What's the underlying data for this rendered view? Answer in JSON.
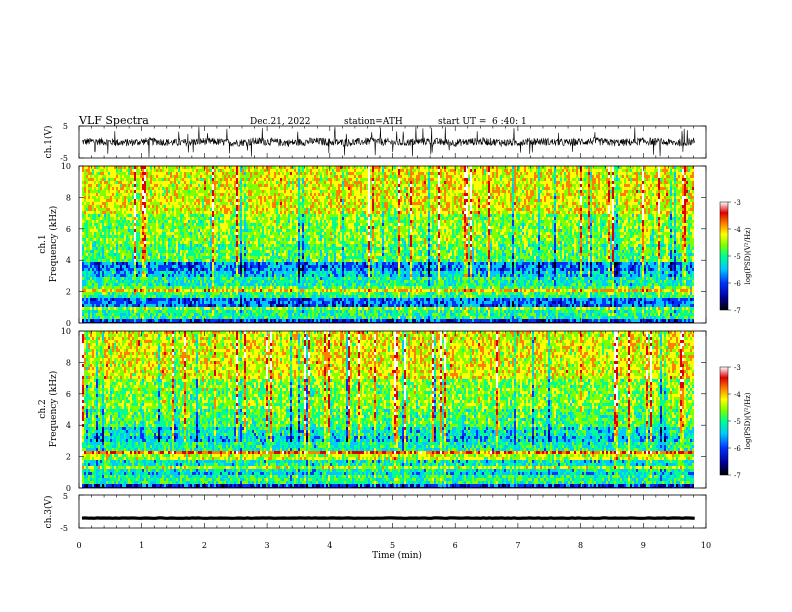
{
  "header": {
    "title": "VLF  Spectra",
    "date": "Dec.21, 2022",
    "station": "station=ATH",
    "start_label": "start  UT  =",
    "start_time": "6  :40: 1"
  },
  "chart_data": [
    {
      "type": "line",
      "ylabel": "ch.1(V)",
      "ylim": [
        -5,
        5
      ],
      "yticks": [
        "5",
        "-5"
      ],
      "description": "waveform noise centred near 0 V, amplitude about ±1.5 V, with frequent impulsive spikes"
    },
    {
      "type": "heatmap",
      "ylabel_line1": "ch.1",
      "ylabel_line2": "Frequency  (kHz)",
      "ylim": [
        0,
        10
      ],
      "yticks": [
        "0",
        "2",
        "4",
        "6",
        "8",
        "10"
      ],
      "colorbar": {
        "label": "log(PSD)(V²/Hz)",
        "range": [
          -7,
          -3
        ],
        "ticks": [
          "-3",
          "-4",
          "-5",
          "-6",
          "-7"
        ]
      }
    },
    {
      "type": "heatmap",
      "ylabel_line1": "ch.2",
      "ylabel_line2": "Frequency  (kHz)",
      "ylim": [
        0,
        10
      ],
      "yticks": [
        "0",
        "2",
        "4",
        "6",
        "8",
        "10"
      ],
      "colorbar": {
        "label": "log(PSD)(V²/Hz)",
        "range": [
          -7,
          -3
        ],
        "ticks": [
          "-3",
          "-4",
          "-5",
          "-6",
          "-7"
        ]
      }
    },
    {
      "type": "line",
      "ylabel": "ch.3(V)",
      "ylim": [
        -5,
        5
      ],
      "yticks": [
        "5",
        "-5"
      ],
      "description": "nearly flat trace at about -2 V"
    }
  ],
  "xaxis": {
    "label": "Time  (min)",
    "range": [
      0,
      10
    ],
    "ticks": [
      "0",
      "1",
      "2",
      "3",
      "4",
      "5",
      "6",
      "7",
      "8",
      "9",
      "10"
    ],
    "data_end": 9.82
  },
  "colors": {
    "colormap": [
      "#000000",
      "#0000a0",
      "#0033ff",
      "#00c8ff",
      "#00ff90",
      "#7fff00",
      "#ffff00",
      "#ff8000",
      "#e00000",
      "#ffffff"
    ]
  }
}
